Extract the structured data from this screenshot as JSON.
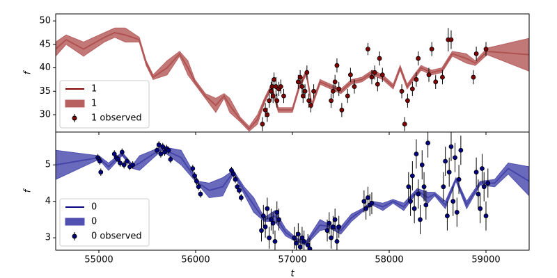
{
  "chart_data": [
    {
      "type": "line",
      "ylabel": "f",
      "legend": "lower left",
      "xlim": [
        54554,
        59446
      ],
      "ylim": [
        26.3,
        51.5
      ],
      "yticks": [
        30,
        35,
        40,
        45,
        50
      ],
      "x": [
        54554,
        54662,
        54842,
        55057,
        55165,
        55273,
        55417,
        55489,
        55561,
        55705,
        55834,
        55920,
        55992,
        56100,
        56208,
        56294,
        56352,
        56459,
        56553,
        56639,
        56711,
        56783,
        56855,
        56927,
        56999,
        57071,
        57143,
        57200,
        57286,
        57394,
        57502,
        57610,
        57718,
        57826,
        57933,
        58041,
        58113,
        58185,
        58257,
        58329,
        58437,
        58545,
        58652,
        58796,
        58890,
        59012,
        59446
      ],
      "series": [
        {
          "name": "1",
          "color": "#800000",
          "values": [
            44,
            46,
            44,
            46.5,
            47.5,
            47,
            46,
            41,
            38,
            40,
            43,
            40,
            37,
            34,
            32,
            34,
            32,
            29,
            27,
            29,
            33,
            36,
            31,
            31,
            31,
            36,
            39,
            32,
            37,
            36,
            35,
            37,
            37.5,
            39,
            38,
            36,
            40,
            36,
            38,
            40,
            39,
            39.5,
            43,
            42,
            41,
            43.5,
            42.8
          ]
        },
        {
          "name": "1",
          "color": "#b86060",
          "lower": [
            42.5,
            45,
            42.5,
            45.5,
            46.5,
            45.5,
            45.5,
            40.5,
            37.5,
            38.5,
            42.5,
            38.5,
            36.5,
            33.5,
            30.5,
            33.5,
            30.5,
            28.5,
            26.5,
            28,
            32.5,
            35.5,
            30.5,
            30.5,
            30.5,
            35.5,
            38.5,
            31.5,
            36.5,
            35.5,
            34.5,
            36.5,
            37,
            38.5,
            37.5,
            35.5,
            39.5,
            35.5,
            37.5,
            39.5,
            38.5,
            39,
            42.5,
            41,
            40.5,
            42.8,
            39.3
          ],
          "upper": [
            45.5,
            47,
            45.5,
            47.5,
            48.5,
            48.5,
            46.5,
            41.5,
            38.5,
            41.5,
            43.5,
            41.5,
            37.5,
            34.5,
            33.5,
            34.5,
            33.5,
            29.5,
            27.5,
            30,
            33.5,
            36.5,
            31.5,
            31.5,
            31.5,
            36.5,
            39.5,
            32.5,
            37.5,
            36.5,
            35.5,
            37.5,
            38,
            39.5,
            38.5,
            36.5,
            40.5,
            36.5,
            38.5,
            40.5,
            39.5,
            40,
            43.5,
            43,
            41.5,
            44.2,
            46.3
          ]
        },
        {
          "name": "1 observed",
          "color": "#800000",
          "x": [
            56690,
            56720,
            56740,
            56760,
            56780,
            56790,
            56800,
            56810,
            56830,
            56840,
            56860,
            56880,
            56910,
            57060,
            57080,
            57100,
            57110,
            57130,
            57150,
            57170,
            57190,
            57220,
            57400,
            57420,
            57440,
            57460,
            57480,
            57510,
            57570,
            57600,
            57640,
            57780,
            57820,
            57850,
            57880,
            57900,
            57930,
            58130,
            58160,
            58190,
            58240,
            58280,
            58300,
            58410,
            58440,
            58480,
            58550,
            58610,
            58640,
            58870,
            58900,
            59000
          ],
          "values": [
            28,
            31,
            30,
            33,
            35,
            36,
            34,
            37.5,
            36,
            33,
            35.5,
            36,
            34,
            37,
            38,
            36,
            34,
            35,
            39,
            33,
            32,
            35,
            33,
            35,
            37,
            40.5,
            35.5,
            31,
            34,
            38.5,
            36,
            44,
            38,
            39,
            36.5,
            42,
            38.5,
            35,
            28,
            33,
            35.5,
            37.5,
            42,
            38.5,
            44,
            37,
            38,
            46,
            46,
            38,
            43,
            44
          ],
          "errors": [
            1.5,
            1.5,
            1.5,
            1.5,
            2,
            1.5,
            1.5,
            1.5,
            2,
            1.5,
            1.5,
            1.5,
            1.5,
            1.5,
            1.5,
            1.5,
            1.5,
            1.5,
            1.5,
            1.5,
            1.5,
            1.5,
            1.5,
            1.5,
            1.5,
            1.5,
            1.5,
            1.5,
            1.5,
            1.5,
            1.5,
            1.3,
            1.5,
            1.5,
            1.5,
            1.5,
            1.5,
            1.5,
            1.5,
            1.5,
            1.5,
            1.5,
            1.5,
            1.5,
            1.5,
            1.5,
            1.5,
            2.5,
            2,
            1.5,
            1.5,
            1.5
          ]
        }
      ]
    },
    {
      "type": "line",
      "ylabel": "f",
      "xlabel": "t",
      "legend": "lower left",
      "xlim": [
        54554,
        59446
      ],
      "ylim": [
        2.66,
        5.9
      ],
      "xticks": [
        55000,
        56000,
        57000,
        58000,
        59000
      ],
      "yticks": [
        3,
        4,
        5
      ],
      "x": [
        54554,
        55000,
        55100,
        55240,
        55350,
        55420,
        55650,
        55850,
        56030,
        56140,
        56280,
        56390,
        56500,
        56600,
        56710,
        56820,
        56930,
        57035,
        57140,
        57285,
        57395,
        57500,
        57610,
        57720,
        57825,
        57935,
        58040,
        58150,
        58290,
        58400,
        58470,
        58580,
        58690,
        58800,
        58940,
        59090,
        59230,
        59446
      ],
      "series": [
        {
          "name": "0",
          "color": "#000080",
          "values": [
            5.0,
            5.2,
            4.95,
            5.3,
            4.95,
            5.05,
            5.45,
            5.2,
            4.5,
            4.3,
            4.4,
            4.8,
            4.3,
            3.9,
            3.5,
            3.6,
            3.15,
            2.95,
            2.85,
            3.35,
            3.3,
            3.2,
            3.55,
            3.75,
            3.95,
            3.85,
            4.0,
            3.85,
            4.3,
            4.1,
            4.2,
            3.9,
            4.6,
            3.9,
            4.5,
            4.5,
            4.9,
            4.55
          ]
        },
        {
          "name": "0",
          "color": "#5050b0",
          "lower": [
            4.6,
            5.15,
            4.85,
            5.25,
            4.9,
            4.85,
            5.4,
            5.0,
            4.45,
            4.1,
            4.15,
            4.75,
            4.2,
            3.7,
            3.45,
            3.45,
            3.05,
            2.9,
            2.8,
            3.2,
            3.25,
            3.1,
            3.45,
            3.7,
            3.9,
            3.75,
            3.95,
            3.75,
            4.25,
            3.95,
            4.15,
            3.8,
            4.55,
            3.8,
            4.45,
            4.4,
            4.75,
            4.15
          ],
          "upper": [
            5.4,
            5.25,
            5.05,
            5.35,
            5.0,
            5.25,
            5.5,
            5.4,
            4.55,
            4.5,
            4.65,
            4.85,
            4.4,
            4.1,
            3.55,
            3.75,
            3.25,
            3.0,
            2.9,
            3.5,
            3.35,
            3.3,
            3.65,
            3.8,
            4.0,
            3.95,
            4.05,
            3.95,
            4.35,
            4.25,
            4.25,
            4.0,
            4.65,
            4.0,
            4.55,
            4.6,
            5.05,
            4.95
          ]
        },
        {
          "name": "0 observed",
          "color": "#000080",
          "x": [
            54990,
            55000,
            55010,
            55020,
            55160,
            55180,
            55200,
            55220,
            55240,
            55260,
            55290,
            55320,
            55350,
            55600,
            55620,
            55640,
            55660,
            55680,
            55700,
            55720,
            55740,
            55970,
            55990,
            56010,
            56030,
            56050,
            56370,
            56390,
            56410,
            56430,
            56450,
            56470,
            56680,
            56700,
            56720,
            56740,
            56760,
            56780,
            56800,
            56820,
            56840,
            56860,
            57020,
            57040,
            57060,
            57080,
            57100,
            57120,
            57160,
            57180,
            57360,
            57380,
            57400,
            57420,
            57440,
            57460,
            57480,
            57740,
            57760,
            57780,
            57800,
            57820,
            58200,
            58220,
            58240,
            58260,
            58280,
            58300,
            58320,
            58340,
            58360,
            58380,
            58400,
            58560,
            58580,
            58600,
            58620,
            58640,
            58660,
            58680,
            58700,
            58720,
            58740,
            58900,
            58920,
            58940,
            58960,
            58980,
            59000,
            59020
          ],
          "values": [
            5.2,
            5.15,
            5.1,
            4.8,
            5.3,
            5.2,
            5.15,
            5.05,
            5.35,
            5.0,
            5.1,
            4.95,
            5.0,
            5.4,
            5.55,
            5.3,
            5.5,
            5.35,
            5.45,
            5.4,
            5.15,
            4.9,
            4.7,
            4.55,
            4.4,
            4.2,
            4.85,
            4.75,
            4.6,
            4.4,
            4.3,
            4.1,
            3.2,
            3.6,
            3.3,
            3.8,
            3.0,
            3.5,
            3.4,
            2.9,
            3.7,
            3.5,
            3.0,
            2.85,
            3.1,
            2.75,
            3.0,
            2.9,
            2.8,
            2.7,
            3.2,
            3.4,
            3.0,
            3.3,
            3.5,
            2.9,
            3.3,
            4.0,
            3.8,
            4.1,
            3.9,
            3.95,
            4.4,
            4.0,
            4.7,
            3.8,
            5.3,
            4.2,
            3.5,
            5.0,
            4.4,
            3.9,
            5.6,
            4.4,
            5.1,
            3.6,
            4.8,
            5.5,
            4.0,
            5.2,
            3.7,
            4.6,
            5.4,
            4.8,
            4.2,
            3.8,
            4.9,
            4.4,
            3.6,
            4.5
          ],
          "errors": [
            0.1,
            0.1,
            0.1,
            0.1,
            0.1,
            0.1,
            0.1,
            0.1,
            0.1,
            0.1,
            0.1,
            0.1,
            0.1,
            0.1,
            0.1,
            0.1,
            0.1,
            0.1,
            0.1,
            0.1,
            0.1,
            0.1,
            0.1,
            0.1,
            0.1,
            0.1,
            0.1,
            0.1,
            0.1,
            0.1,
            0.1,
            0.1,
            0.3,
            0.3,
            0.3,
            0.3,
            0.3,
            0.3,
            0.3,
            0.3,
            0.3,
            0.3,
            0.3,
            0.3,
            0.3,
            0.3,
            0.3,
            0.3,
            0.3,
            0.3,
            0.3,
            0.3,
            0.3,
            0.3,
            0.3,
            0.3,
            0.3,
            0.3,
            0.3,
            0.3,
            0.3,
            0.3,
            0.4,
            0.4,
            0.4,
            0.4,
            0.4,
            0.4,
            0.4,
            0.4,
            0.4,
            0.4,
            0.4,
            0.4,
            0.4,
            0.4,
            0.4,
            0.4,
            0.4,
            0.4,
            0.4,
            0.4,
            0.4,
            0.4,
            0.4,
            0.4,
            0.4,
            0.4,
            0.4,
            0.4
          ]
        }
      ]
    }
  ]
}
